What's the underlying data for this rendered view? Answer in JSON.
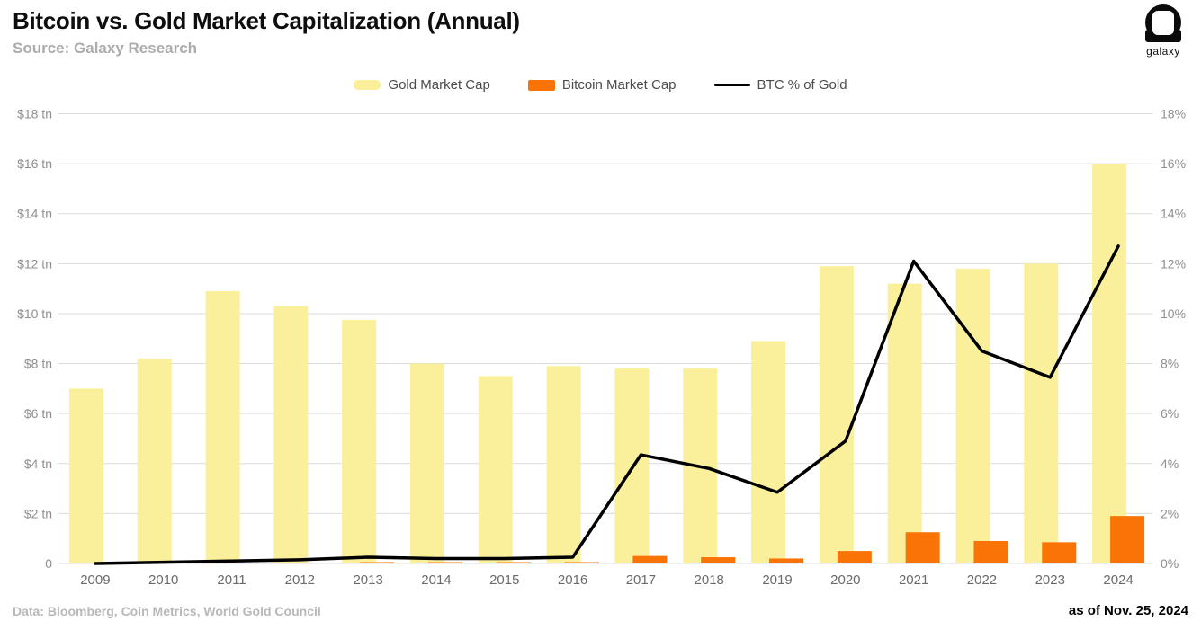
{
  "header": {
    "title": "Bitcoin vs. Gold Market Capitalization (Annual)",
    "subtitle": "Source: Galaxy Research",
    "logo_text": "galaxy"
  },
  "footer": {
    "source": "Data: Bloomberg, Coin Metrics, World Gold Council",
    "as_of": "as of Nov. 25, 2024"
  },
  "colors": {
    "gold": "#FAF09B",
    "bitcoin": "#F97306",
    "line": "#000000",
    "grid": "#DBDBDB",
    "axis_text": "#8F8F8F",
    "xaxis_text": "#6A6A6A"
  },
  "chart_data": {
    "type": "bar",
    "title": "Bitcoin vs. Gold Market Capitalization (Annual)",
    "categories": [
      "2009",
      "2010",
      "2011",
      "2012",
      "2013",
      "2014",
      "2015",
      "2016",
      "2017",
      "2018",
      "2019",
      "2020",
      "2021",
      "2022",
      "2023",
      "2024"
    ],
    "series": [
      {
        "name": "Gold Market Cap",
        "type": "bar",
        "axis": "left",
        "unit": "$ tn",
        "values": [
          7.0,
          8.2,
          10.9,
          10.3,
          9.75,
          8.0,
          7.5,
          7.9,
          7.8,
          7.8,
          8.9,
          11.9,
          11.2,
          11.8,
          12.0,
          16.0
        ]
      },
      {
        "name": "Bitcoin Market Cap",
        "type": "bar",
        "axis": "left",
        "unit": "$ tn",
        "values": [
          0,
          0,
          0,
          0,
          0.01,
          0.01,
          0.01,
          0.02,
          0.3,
          0.25,
          0.2,
          0.5,
          1.25,
          0.9,
          0.85,
          1.9
        ]
      },
      {
        "name": "BTC % of Gold",
        "type": "line",
        "axis": "right",
        "unit": "%",
        "values": [
          0.0,
          0.05,
          0.1,
          0.15,
          0.25,
          0.2,
          0.2,
          0.25,
          4.35,
          3.8,
          2.85,
          4.9,
          12.1,
          8.5,
          7.45,
          12.7
        ]
      }
    ],
    "left_axis": {
      "min": 0,
      "max": 18,
      "ticks": [
        "$18 tn",
        "$16 tn",
        "$14 tn",
        "$12 tn",
        "$10 tn",
        "$8 tn",
        "$6 tn",
        "$4 tn",
        "$2 tn",
        "0"
      ]
    },
    "right_axis": {
      "min": 0,
      "max": 18,
      "ticks": [
        "18%",
        "16%",
        "14%",
        "12%",
        "10%",
        "8%",
        "6%",
        "4%",
        "2%",
        "0%"
      ]
    },
    "grid": true,
    "legend_position": "top-center"
  }
}
